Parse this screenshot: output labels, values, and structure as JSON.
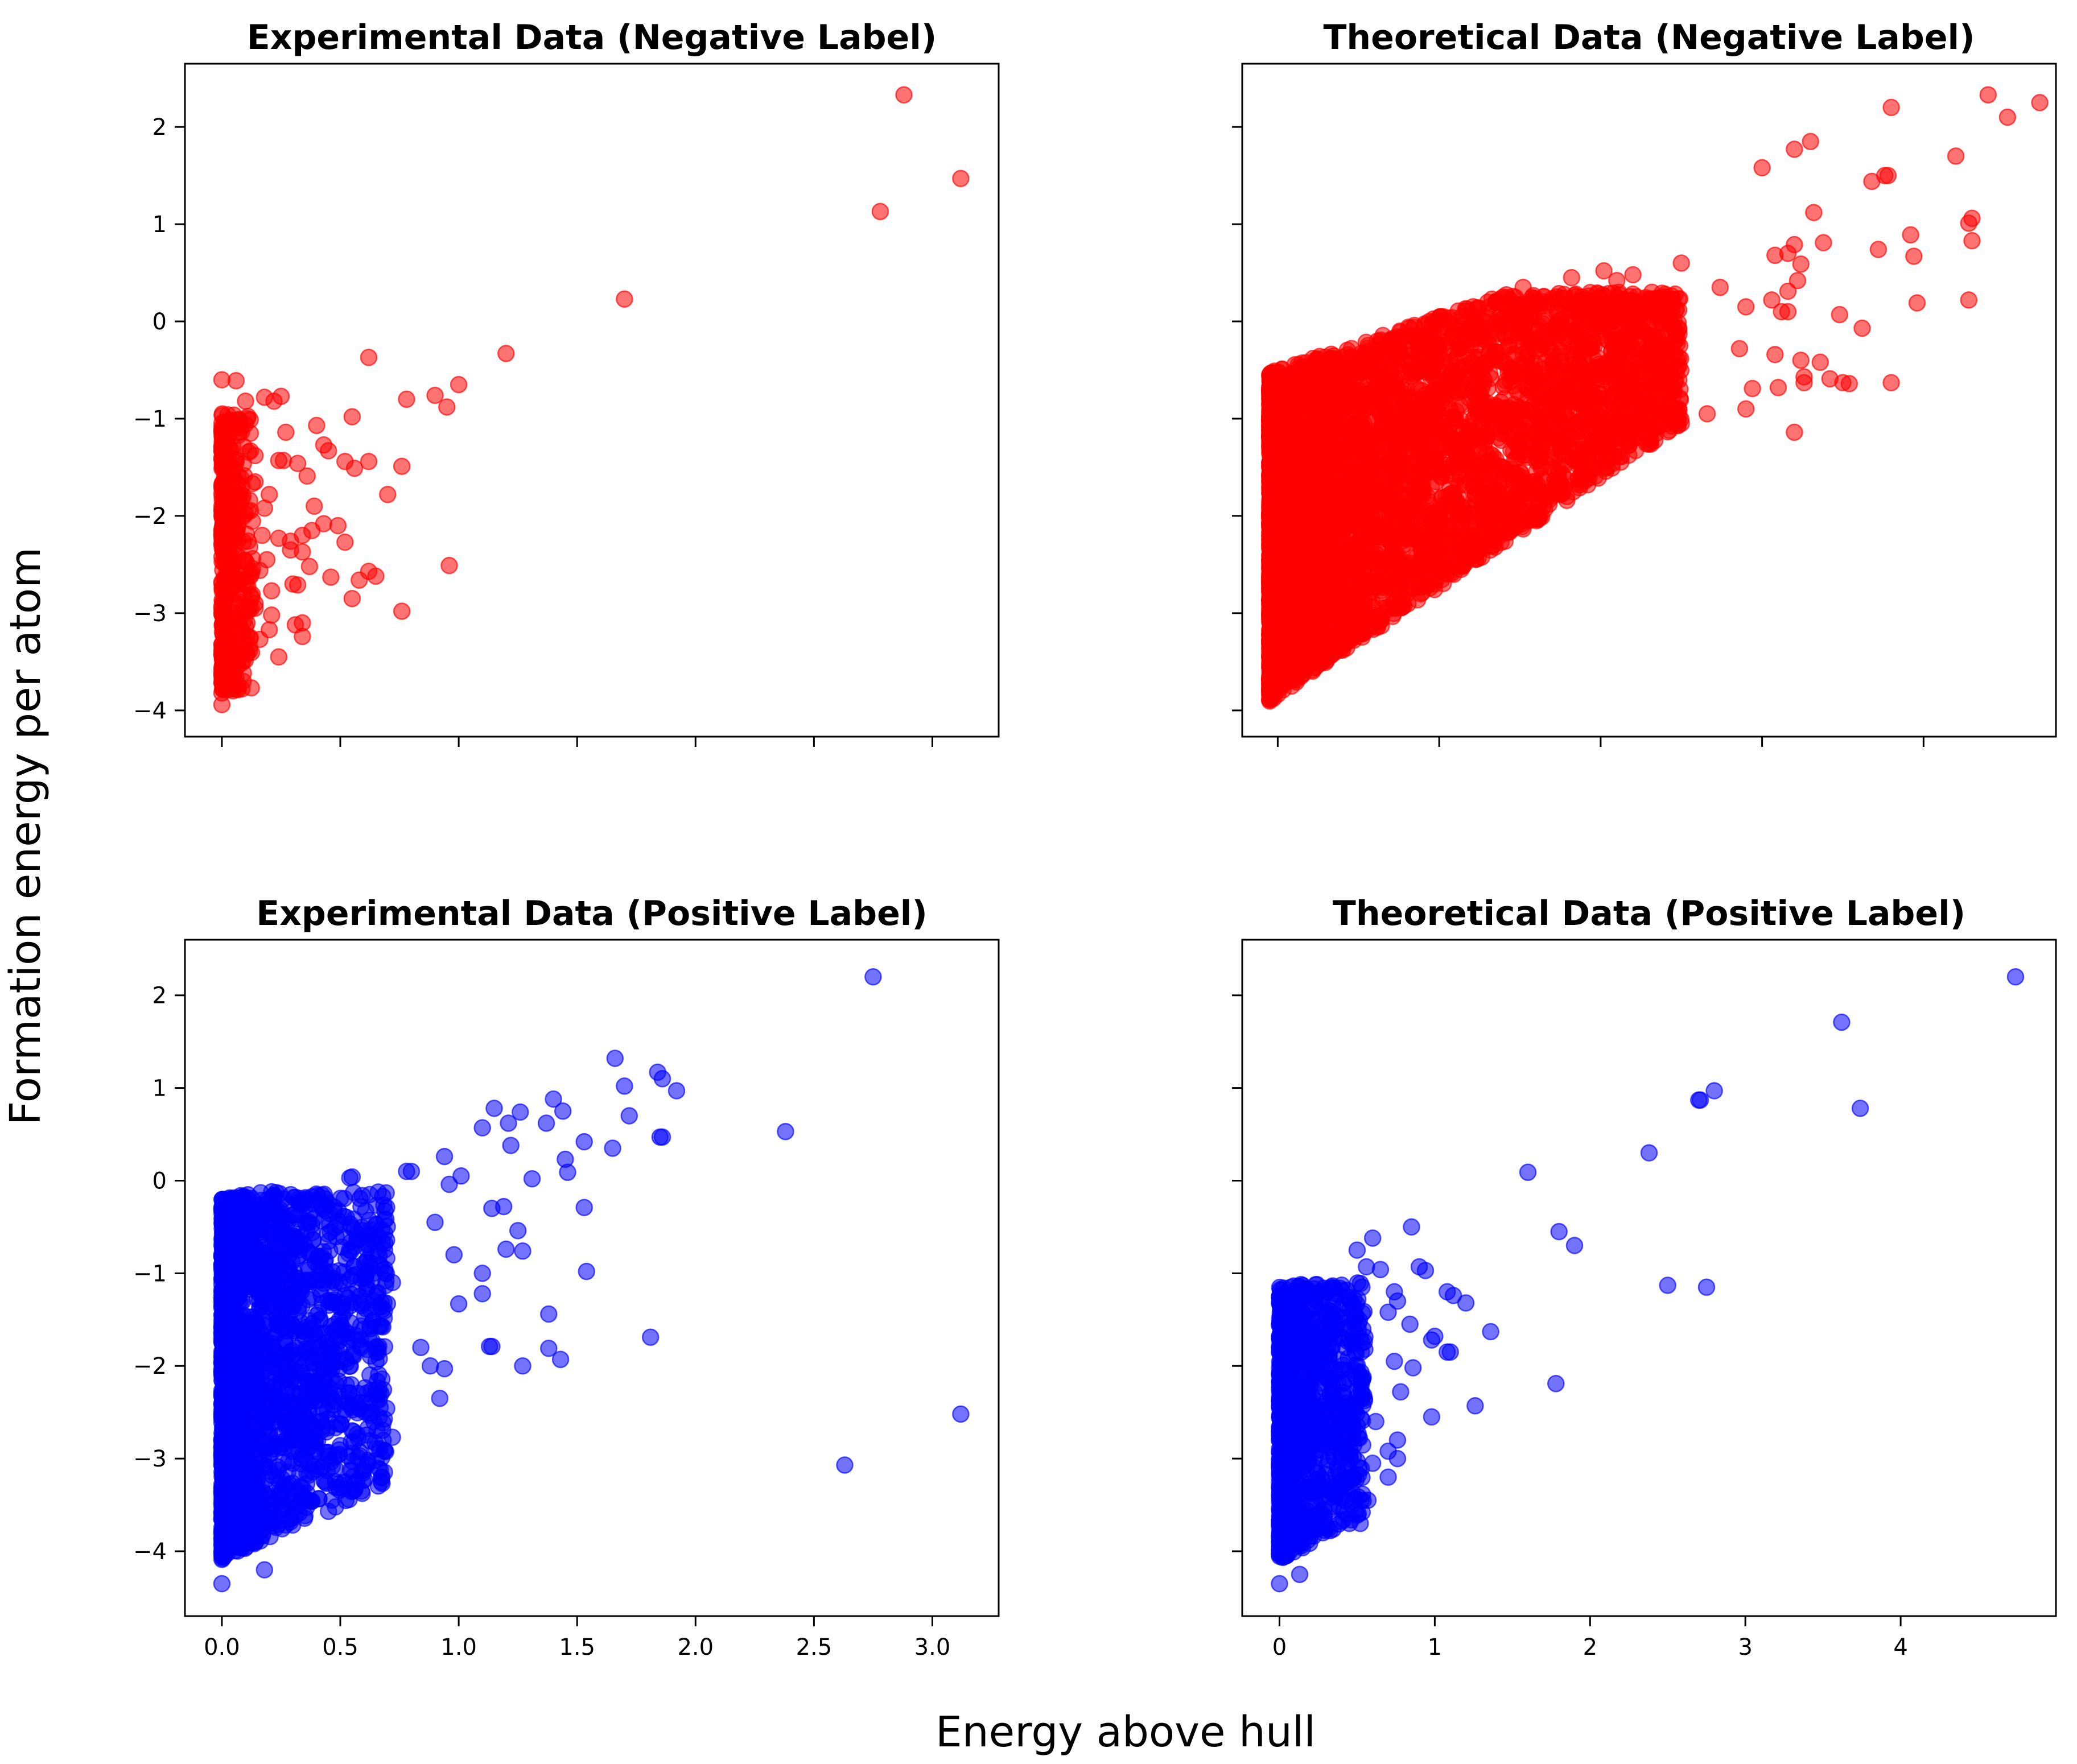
{
  "figure": {
    "supxlabel": "Energy above hull",
    "supylabel": "Formation energy per atom"
  },
  "chart_data": [
    {
      "type": "scatter",
      "title": "Experimental Data (Negative Label)",
      "color": "#ff0000",
      "alpha": 0.55,
      "xlim": [
        -0.156,
        3.28
      ],
      "ylim": [
        -4.27,
        2.65
      ],
      "xticks": [
        0.0,
        0.5,
        1.0,
        1.5,
        2.0,
        2.5,
        3.0
      ],
      "xtick_labels": [],
      "yticks": [
        -4,
        -3,
        -2,
        -1,
        0,
        1,
        2
      ],
      "ytick_labels": [
        "−4",
        "−3",
        "−2",
        "−1",
        "0",
        "1",
        "2"
      ],
      "points": [
        [
          2.88,
          2.33
        ],
        [
          3.12,
          1.47
        ],
        [
          2.78,
          1.13
        ],
        [
          1.7,
          0.23
        ],
        [
          1.2,
          -0.33
        ],
        [
          0.62,
          -0.37
        ],
        [
          1.0,
          -0.65
        ],
        [
          0.9,
          -0.76
        ],
        [
          0.95,
          -0.88
        ],
        [
          0.78,
          -0.8
        ],
        [
          0.55,
          -0.98
        ],
        [
          0.18,
          -0.78
        ],
        [
          0.25,
          -0.77
        ],
        [
          0.22,
          -0.82
        ],
        [
          0.0,
          -0.6
        ],
        [
          0.06,
          -0.61
        ],
        [
          0.1,
          -0.82
        ],
        [
          0.4,
          -1.07
        ],
        [
          0.27,
          -1.14
        ],
        [
          0.43,
          -1.27
        ],
        [
          0.45,
          -1.33
        ],
        [
          0.52,
          -1.44
        ],
        [
          0.56,
          -1.51
        ],
        [
          0.62,
          -1.44
        ],
        [
          0.76,
          -1.49
        ],
        [
          0.24,
          -1.43
        ],
        [
          0.26,
          -1.43
        ],
        [
          0.32,
          -1.46
        ],
        [
          0.36,
          -1.59
        ],
        [
          0.7,
          -1.78
        ],
        [
          0.14,
          -1.65
        ],
        [
          0.2,
          -1.78
        ],
        [
          0.39,
          -1.9
        ],
        [
          0.43,
          -2.08
        ],
        [
          0.49,
          -2.1
        ],
        [
          0.52,
          -2.27
        ],
        [
          0.34,
          -2.2
        ],
        [
          0.38,
          -2.15
        ],
        [
          0.24,
          -2.23
        ],
        [
          0.29,
          -2.26
        ],
        [
          0.29,
          -2.35
        ],
        [
          0.34,
          -2.37
        ],
        [
          0.37,
          -2.52
        ],
        [
          0.19,
          -2.45
        ],
        [
          0.62,
          -2.57
        ],
        [
          0.65,
          -2.62
        ],
        [
          0.58,
          -2.66
        ],
        [
          0.46,
          -2.63
        ],
        [
          0.3,
          -2.7
        ],
        [
          0.32,
          -2.71
        ],
        [
          0.96,
          -2.51
        ],
        [
          0.21,
          -2.77
        ],
        [
          0.55,
          -2.85
        ],
        [
          0.76,
          -2.98
        ],
        [
          0.34,
          -3.1
        ],
        [
          0.31,
          -3.12
        ],
        [
          0.21,
          -3.02
        ],
        [
          0.2,
          -3.17
        ],
        [
          0.34,
          -3.24
        ],
        [
          0.24,
          -3.45
        ],
        [
          0.14,
          -2.9
        ],
        [
          0.12,
          -3.25
        ],
        [
          0.16,
          -3.27
        ],
        [
          0.09,
          -3.7
        ],
        [
          0.0,
          -3.94
        ],
        [
          0.0,
          -3.82
        ],
        [
          0.14,
          -1.38
        ],
        [
          0.11,
          -1.95
        ],
        [
          0.17,
          -2.2
        ],
        [
          0.13,
          -2.44
        ],
        [
          0.08,
          -2.65
        ],
        [
          0.14,
          -2.95
        ],
        [
          0.1,
          -3.14
        ],
        [
          0.06,
          -3.5
        ],
        [
          0.16,
          -2.56
        ],
        [
          0.18,
          -1.92
        ],
        [
          0.12,
          -1.15
        ]
      ],
      "dense_cluster": {
        "x_range": [
          0.0,
          0.13
        ],
        "y_range": [
          -3.8,
          -0.95
        ],
        "count": 420,
        "seed": 11
      }
    },
    {
      "type": "scatter",
      "title": "Theoretical Data (Negative Label)",
      "color": "#ff0000",
      "alpha": 0.55,
      "xlim": [
        -0.22,
        4.82
      ],
      "ylim": [
        -4.27,
        2.65
      ],
      "xticks": [
        0,
        1,
        2,
        3,
        4
      ],
      "xtick_labels": [],
      "yticks": [
        -4,
        -3,
        -2,
        -1,
        0,
        1,
        2
      ],
      "ytick_labels": [],
      "points": [
        [
          4.4,
          2.33
        ],
        [
          4.72,
          2.25
        ],
        [
          4.52,
          2.1
        ],
        [
          3.8,
          2.2
        ],
        [
          3.3,
          1.85
        ],
        [
          3.2,
          1.77
        ],
        [
          4.2,
          1.7
        ],
        [
          3.0,
          1.58
        ],
        [
          3.78,
          1.5
        ],
        [
          3.76,
          1.5
        ],
        [
          3.68,
          1.44
        ],
        [
          3.32,
          1.12
        ],
        [
          4.3,
          1.06
        ],
        [
          4.28,
          1.01
        ],
        [
          3.92,
          0.89
        ],
        [
          4.3,
          0.83
        ],
        [
          3.72,
          0.74
        ],
        [
          3.94,
          0.67
        ],
        [
          3.38,
          0.81
        ],
        [
          3.2,
          0.79
        ],
        [
          3.16,
          0.7
        ],
        [
          3.08,
          0.68
        ],
        [
          3.24,
          0.59
        ],
        [
          3.22,
          0.42
        ],
        [
          3.16,
          0.31
        ],
        [
          3.06,
          0.22
        ],
        [
          3.96,
          0.19
        ],
        [
          4.28,
          0.22
        ],
        [
          3.16,
          0.1
        ],
        [
          3.12,
          0.1
        ],
        [
          3.48,
          0.07
        ],
        [
          3.62,
          -0.07
        ],
        [
          2.9,
          0.15
        ],
        [
          2.74,
          0.35
        ],
        [
          2.5,
          0.6
        ],
        [
          2.2,
          0.48
        ],
        [
          2.1,
          0.42
        ],
        [
          2.02,
          0.52
        ],
        [
          2.4,
          0.28
        ],
        [
          2.38,
          0.29
        ],
        [
          1.82,
          0.45
        ],
        [
          1.52,
          0.35
        ],
        [
          1.36,
          0.21
        ],
        [
          3.42,
          -0.59
        ],
        [
          3.5,
          -0.63
        ],
        [
          3.54,
          -0.64
        ],
        [
          3.26,
          -0.63
        ],
        [
          3.26,
          -0.57
        ],
        [
          3.1,
          -0.68
        ],
        [
          3.8,
          -0.63
        ],
        [
          2.94,
          -0.69
        ],
        [
          3.36,
          -0.42
        ],
        [
          3.24,
          -0.4
        ],
        [
          3.08,
          -0.34
        ],
        [
          2.86,
          -0.28
        ],
        [
          3.2,
          -1.14
        ],
        [
          2.5,
          -1.05
        ],
        [
          2.32,
          -1.08
        ],
        [
          2.9,
          -0.9
        ],
        [
          2.66,
          -0.95
        ]
      ],
      "dense_cluster": {
        "x_range": [
          -0.05,
          2.5
        ],
        "y_range": [
          -3.95,
          0.3
        ],
        "lower_edge": [
          -3.85,
          1.12
        ],
        "upper_edge": [
          -0.5,
          0.55
        ],
        "count": 5200,
        "seed": 23
      }
    },
    {
      "type": "scatter",
      "title": "Experimental Data (Positive Label)",
      "color": "#0000ff",
      "alpha": 0.55,
      "xlim": [
        -0.156,
        3.28
      ],
      "ylim": [
        -4.7,
        2.6
      ],
      "xticks": [
        0.0,
        0.5,
        1.0,
        1.5,
        2.0,
        2.5,
        3.0
      ],
      "xtick_labels": [
        "0.0",
        "0.5",
        "1.0",
        "1.5",
        "2.0",
        "2.5",
        "3.0"
      ],
      "yticks": [
        -4,
        -3,
        -2,
        -1,
        0,
        1,
        2
      ],
      "ytick_labels": [
        "−4",
        "−3",
        "−2",
        "−1",
        "0",
        "1",
        "2"
      ],
      "points": [
        [
          2.75,
          2.2
        ],
        [
          1.66,
          1.32
        ],
        [
          1.84,
          1.17
        ],
        [
          1.92,
          0.97
        ],
        [
          1.7,
          1.02
        ],
        [
          1.86,
          1.1
        ],
        [
          1.72,
          0.7
        ],
        [
          2.38,
          0.53
        ],
        [
          1.85,
          0.47
        ],
        [
          1.86,
          0.47
        ],
        [
          1.4,
          0.88
        ],
        [
          1.44,
          0.75
        ],
        [
          1.15,
          0.78
        ],
        [
          1.26,
          0.74
        ],
        [
          1.21,
          0.62
        ],
        [
          1.37,
          0.62
        ],
        [
          1.1,
          0.57
        ],
        [
          1.65,
          0.35
        ],
        [
          1.53,
          0.42
        ],
        [
          1.45,
          0.23
        ],
        [
          1.22,
          0.38
        ],
        [
          1.31,
          0.02
        ],
        [
          1.53,
          -0.29
        ],
        [
          1.46,
          0.09
        ],
        [
          0.94,
          0.26
        ],
        [
          1.01,
          0.05
        ],
        [
          0.96,
          -0.04
        ],
        [
          0.78,
          0.1
        ],
        [
          0.8,
          0.1
        ],
        [
          0.55,
          0.04
        ],
        [
          0.54,
          0.03
        ],
        [
          1.25,
          -0.54
        ],
        [
          1.19,
          -0.28
        ],
        [
          1.14,
          -0.3
        ],
        [
          1.54,
          -0.98
        ],
        [
          1.27,
          -0.76
        ],
        [
          1.2,
          -0.74
        ],
        [
          0.98,
          -0.8
        ],
        [
          1.1,
          -1.0
        ],
        [
          1.0,
          -1.33
        ],
        [
          1.1,
          -1.22
        ],
        [
          1.38,
          -1.44
        ],
        [
          1.13,
          -1.79
        ],
        [
          1.14,
          -1.79
        ],
        [
          1.81,
          -1.69
        ],
        [
          1.27,
          -2.0
        ],
        [
          1.43,
          -1.93
        ],
        [
          1.38,
          -1.81
        ],
        [
          0.94,
          -2.03
        ],
        [
          0.92,
          -2.35
        ],
        [
          0.88,
          -2.0
        ],
        [
          0.84,
          -1.8
        ],
        [
          0.72,
          -2.77
        ],
        [
          0.55,
          -2.7
        ],
        [
          0.45,
          -3.57
        ],
        [
          0.38,
          -3.46
        ],
        [
          0.25,
          -3.56
        ],
        [
          0.18,
          -4.2
        ],
        [
          2.63,
          -3.07
        ],
        [
          3.12,
          -2.52
        ],
        [
          0.0,
          -4.35
        ],
        [
          0.72,
          -1.1
        ],
        [
          0.66,
          -0.6
        ],
        [
          0.9,
          -0.45
        ],
        [
          0.6,
          -1.3
        ],
        [
          0.48,
          -1.55
        ],
        [
          0.34,
          -2.65
        ],
        [
          0.3,
          -3.05
        ],
        [
          0.42,
          -2.6
        ],
        [
          0.2,
          -3.7
        ],
        [
          0.66,
          -1.85
        ]
      ],
      "dense_cluster": {
        "x_range": [
          0.0,
          0.7
        ],
        "y_range": [
          -4.12,
          -0.12
        ],
        "lower_edge": [
          -4.1,
          1.2
        ],
        "upper_edge": [
          -0.2,
          0.5
        ],
        "count": 2000,
        "seed": 37
      }
    },
    {
      "type": "scatter",
      "title": "Theoretical Data (Positive Label)",
      "color": "#0000ff",
      "alpha": 0.55,
      "xlim": [
        -0.24,
        5.0
      ],
      "ylim": [
        -4.7,
        2.6
      ],
      "xticks": [
        0,
        1,
        2,
        3,
        4
      ],
      "xtick_labels": [
        "0",
        "1",
        "2",
        "3",
        "4"
      ],
      "yticks": [
        -4,
        -3,
        -2,
        -1,
        0,
        1,
        2
      ],
      "ytick_labels": [],
      "points": [
        [
          4.74,
          2.2
        ],
        [
          3.62,
          1.71
        ],
        [
          3.74,
          0.78
        ],
        [
          2.8,
          0.97
        ],
        [
          2.7,
          0.87
        ],
        [
          2.71,
          0.87
        ],
        [
          2.38,
          0.3
        ],
        [
          1.6,
          0.09
        ],
        [
          1.8,
          -0.55
        ],
        [
          1.9,
          -0.7
        ],
        [
          0.85,
          -0.5
        ],
        [
          0.6,
          -0.62
        ],
        [
          0.5,
          -0.75
        ],
        [
          0.56,
          -0.93
        ],
        [
          0.65,
          -0.96
        ],
        [
          0.9,
          -0.93
        ],
        [
          0.94,
          -0.97
        ],
        [
          0.74,
          -1.2
        ],
        [
          2.5,
          -1.13
        ],
        [
          2.75,
          -1.15
        ],
        [
          1.12,
          -1.24
        ],
        [
          1.2,
          -1.32
        ],
        [
          1.08,
          -1.2
        ],
        [
          1.36,
          -1.63
        ],
        [
          0.76,
          -1.3
        ],
        [
          0.7,
          -1.42
        ],
        [
          0.84,
          -1.55
        ],
        [
          0.98,
          -1.72
        ],
        [
          1.0,
          -1.68
        ],
        [
          0.86,
          -2.02
        ],
        [
          1.08,
          -1.85
        ],
        [
          1.1,
          -1.85
        ],
        [
          0.74,
          -1.95
        ],
        [
          0.78,
          -2.28
        ],
        [
          1.78,
          -2.19
        ],
        [
          1.26,
          -2.43
        ],
        [
          0.98,
          -2.55
        ],
        [
          0.62,
          -2.6
        ],
        [
          0.7,
          -2.92
        ],
        [
          0.76,
          -2.8
        ],
        [
          0.76,
          -3.0
        ],
        [
          0.7,
          -3.2
        ],
        [
          0.6,
          -3.05
        ],
        [
          0.57,
          -3.45
        ],
        [
          0.52,
          -3.7
        ],
        [
          0.0,
          -4.35
        ],
        [
          0.13,
          -4.25
        ],
        [
          0.28,
          -3.8
        ],
        [
          0.45,
          -3.7
        ]
      ],
      "dense_cluster": {
        "x_range": [
          0.0,
          0.55
        ],
        "y_range": [
          -4.15,
          -1.1
        ],
        "lower_edge": [
          -4.1,
          0.9
        ],
        "upper_edge": [
          -1.15,
          0.2
        ],
        "count": 1100,
        "seed": 53
      }
    }
  ]
}
